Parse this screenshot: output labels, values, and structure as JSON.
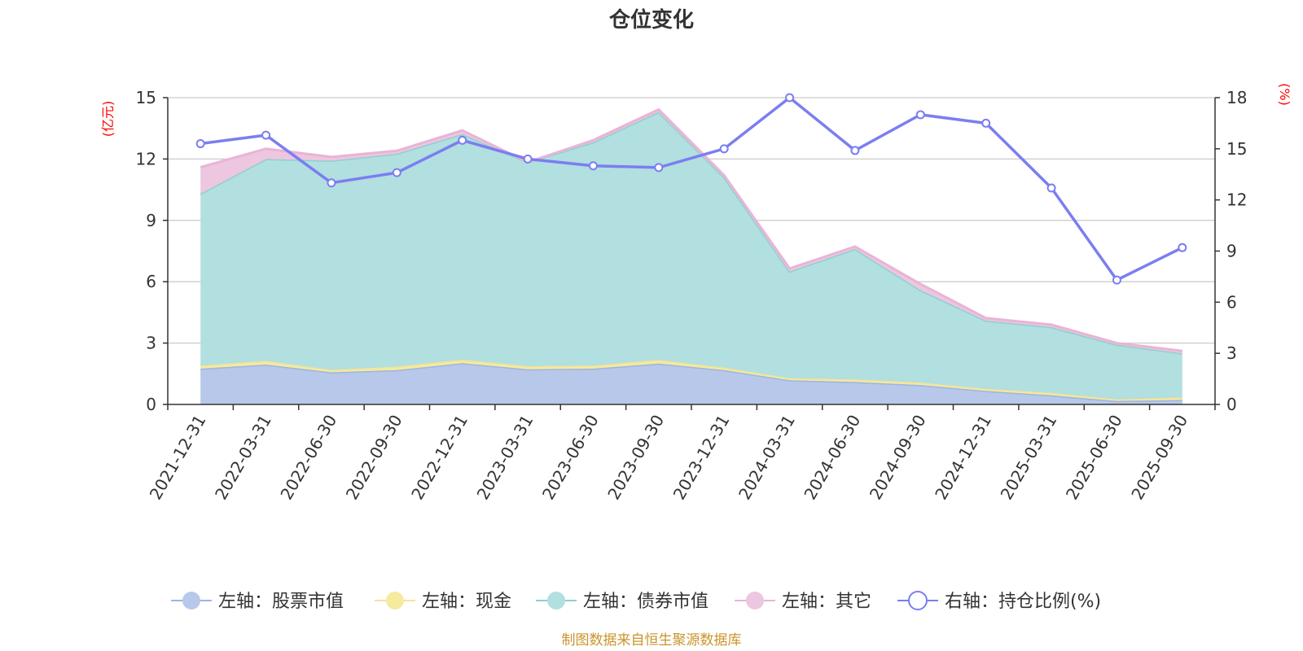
{
  "chart_data": {
    "type": "area",
    "title": "仓位变化",
    "left_unit": "(亿元)",
    "right_unit": "(%)",
    "categories": [
      "2021-12-31",
      "2022-03-31",
      "2022-06-30",
      "2022-09-30",
      "2022-12-31",
      "2023-03-31",
      "2023-06-30",
      "2023-09-30",
      "2023-12-31",
      "2024-03-31",
      "2024-06-30",
      "2024-09-30",
      "2024-12-31",
      "2025-03-31",
      "2025-06-30",
      "2025-09-30"
    ],
    "left_axis": {
      "ylim": [
        0,
        15
      ],
      "ticks": [
        0,
        3,
        6,
        9,
        12,
        15
      ]
    },
    "right_axis": {
      "ylim": [
        0,
        18
      ],
      "ticks": [
        0,
        3,
        6,
        9,
        12,
        15,
        18
      ]
    },
    "stacked_series": [
      {
        "name": "左轴：股票市值",
        "color": "#9db5e0",
        "fill": "#b7c8ea",
        "values": [
          1.75,
          1.95,
          1.57,
          1.68,
          2.02,
          1.72,
          1.75,
          2.0,
          1.68,
          1.18,
          1.1,
          0.95,
          0.66,
          0.45,
          0.17,
          0.22
        ]
      },
      {
        "name": "左轴：现金",
        "color": "#f3e29a",
        "fill": "#f5ea9e",
        "values": [
          0.15,
          0.18,
          0.12,
          0.17,
          0.17,
          0.15,
          0.15,
          0.18,
          0.12,
          0.1,
          0.12,
          0.12,
          0.1,
          0.12,
          0.08,
          0.12
        ]
      },
      {
        "name": "左轴：债券市值",
        "color": "#8fd0d0",
        "fill": "#b2dfdf",
        "values": [
          8.4,
          9.87,
          10.23,
          10.41,
          11.03,
          9.97,
          10.92,
          12.12,
          9.3,
          5.22,
          6.38,
          4.52,
          3.34,
          3.21,
          2.67,
          2.16
        ]
      },
      {
        "name": "左轴：其它",
        "color": "#e9b4d6",
        "fill": "#edc6df",
        "values": [
          1.3,
          0.5,
          0.18,
          0.14,
          0.18,
          0.0,
          0.1,
          0.12,
          0.1,
          0.15,
          0.12,
          0.3,
          0.12,
          0.12,
          0.08,
          0.12
        ]
      }
    ],
    "line_series": {
      "name": "右轴：持仓比例(%)",
      "color": "#7b7ef0",
      "values": [
        15.3,
        15.8,
        13.0,
        13.6,
        15.5,
        14.4,
        14.0,
        13.9,
        15.0,
        18.0,
        14.9,
        17.0,
        16.5,
        12.7,
        7.3,
        9.2
      ]
    },
    "grid": true,
    "legend_position": "bottom"
  },
  "source_text": "制图数据来自恒生聚源数据库"
}
